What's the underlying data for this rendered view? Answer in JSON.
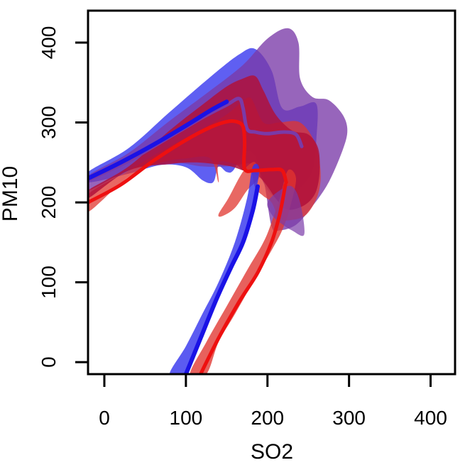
{
  "chart_data": {
    "type": "area",
    "title": "",
    "xlabel": "SO2",
    "ylabel": "PM10",
    "xlim": [
      -20,
      430
    ],
    "ylim": [
      -15,
      440
    ],
    "x_ticks": [
      0,
      100,
      200,
      300,
      400
    ],
    "y_ticks": [
      0,
      100,
      200,
      300,
      400
    ],
    "grid": false,
    "legend": "none",
    "colors": {
      "blue_band": "#3232ee",
      "purple_band": "#7a3aa8",
      "red_band": "#e0352f",
      "crimson_band": "#b0103a",
      "blue_line": "#1a12e6",
      "red_line": "#ee1010",
      "axis": "#000000"
    },
    "series": [
      {
        "role": "upper confidence band (blue)",
        "color_key": "blue_band",
        "opacity": 0.78,
        "points": [
          [
            -20,
            238
          ],
          [
            30,
            268
          ],
          [
            80,
            313
          ],
          [
            130,
            357
          ],
          [
            165,
            385
          ],
          [
            185,
            392
          ],
          [
            205,
            365
          ],
          [
            218,
            318
          ],
          [
            240,
            320
          ],
          [
            260,
            323
          ],
          [
            260,
            280
          ],
          [
            255,
            240
          ],
          [
            240,
            218
          ],
          [
            225,
            205
          ],
          [
            210,
            205
          ],
          [
            195,
            225
          ],
          [
            185,
            258
          ],
          [
            172,
            263
          ],
          [
            158,
            240
          ],
          [
            150,
            238
          ],
          [
            140,
            245
          ],
          [
            135,
            228
          ],
          [
            130,
            224
          ],
          [
            120,
            228
          ],
          [
            100,
            244
          ],
          [
            70,
            247
          ],
          [
            30,
            236
          ],
          [
            -20,
            225
          ]
        ]
      },
      {
        "role": "upper confidence band (purple)",
        "color_key": "purple_band",
        "opacity": 0.78,
        "points": [
          [
            -20,
            233
          ],
          [
            30,
            262
          ],
          [
            80,
            302
          ],
          [
            130,
            340
          ],
          [
            170,
            372
          ],
          [
            200,
            405
          ],
          [
            225,
            418
          ],
          [
            238,
            400
          ],
          [
            240,
            355
          ],
          [
            255,
            332
          ],
          [
            275,
            328
          ],
          [
            292,
            310
          ],
          [
            298,
            290
          ],
          [
            292,
            265
          ],
          [
            275,
            225
          ],
          [
            255,
            195
          ],
          [
            235,
            172
          ],
          [
            215,
            165
          ],
          [
            205,
            170
          ],
          [
            195,
            228
          ],
          [
            182,
            247
          ],
          [
            170,
            248
          ],
          [
            150,
            245
          ],
          [
            120,
            245
          ],
          [
            80,
            250
          ],
          [
            30,
            240
          ],
          [
            -20,
            215
          ]
        ]
      },
      {
        "role": "upper confidence band (red)",
        "color_key": "red_band",
        "opacity": 0.75,
        "points": [
          [
            -20,
            210
          ],
          [
            30,
            240
          ],
          [
            80,
            270
          ],
          [
            120,
            292
          ],
          [
            150,
            310
          ],
          [
            168,
            325
          ],
          [
            180,
            330
          ],
          [
            195,
            300
          ],
          [
            215,
            300
          ],
          [
            240,
            300
          ],
          [
            258,
            275
          ],
          [
            265,
            240
          ],
          [
            262,
            210
          ],
          [
            248,
            185
          ],
          [
            230,
            178
          ],
          [
            215,
            180
          ],
          [
            205,
            200
          ],
          [
            195,
            208
          ],
          [
            185,
            218
          ],
          [
            180,
            238
          ],
          [
            170,
            240
          ],
          [
            160,
            248
          ],
          [
            140,
            250
          ],
          [
            140,
            225
          ],
          [
            130,
            255
          ],
          [
            100,
            255
          ],
          [
            70,
            250
          ],
          [
            30,
            232
          ],
          [
            -20,
            188
          ]
        ]
      },
      {
        "role": "upper confidence band (crimson core)",
        "color_key": "crimson_band",
        "opacity": 0.85,
        "points": [
          [
            -20,
            215
          ],
          [
            30,
            245
          ],
          [
            80,
            290
          ],
          [
            120,
            322
          ],
          [
            150,
            345
          ],
          [
            170,
            355
          ],
          [
            185,
            358
          ],
          [
            195,
            340
          ],
          [
            210,
            310
          ],
          [
            230,
            290
          ],
          [
            250,
            285
          ],
          [
            262,
            268
          ],
          [
            264,
            240
          ],
          [
            260,
            215
          ],
          [
            250,
            200
          ],
          [
            235,
            192
          ],
          [
            222,
            192
          ],
          [
            210,
            205
          ],
          [
            200,
            220
          ],
          [
            190,
            232
          ],
          [
            180,
            238
          ],
          [
            170,
            240
          ],
          [
            155,
            245
          ],
          [
            135,
            248
          ],
          [
            110,
            250
          ],
          [
            80,
            248
          ],
          [
            30,
            240
          ],
          [
            -20,
            205
          ]
        ]
      },
      {
        "role": "lower confidence band (red)",
        "color_key": "red_band",
        "opacity": 0.75,
        "points": [
          [
            140,
            185
          ],
          [
            152,
            205
          ],
          [
            165,
            230
          ],
          [
            175,
            245
          ],
          [
            185,
            250
          ],
          [
            190,
            232
          ],
          [
            175,
            215
          ],
          [
            160,
            193
          ],
          [
            145,
            183
          ]
        ]
      },
      {
        "role": "lower confidence band (blue)",
        "color_key": "blue_band",
        "opacity": 0.8,
        "points": [
          [
            80,
            -15
          ],
          [
            100,
            20
          ],
          [
            120,
            60
          ],
          [
            140,
            100
          ],
          [
            160,
            150
          ],
          [
            175,
            205
          ],
          [
            182,
            245
          ],
          [
            190,
            240
          ],
          [
            180,
            190
          ],
          [
            165,
            140
          ],
          [
            148,
            100
          ],
          [
            130,
            55
          ],
          [
            112,
            10
          ],
          [
            100,
            -15
          ]
        ]
      },
      {
        "role": "lower confidence band (red)",
        "color_key": "red_band",
        "opacity": 0.78,
        "points": [
          [
            105,
            -15
          ],
          [
            125,
            25
          ],
          [
            150,
            70
          ],
          [
            175,
            115
          ],
          [
            195,
            150
          ],
          [
            205,
            175
          ],
          [
            215,
            205
          ],
          [
            225,
            240
          ],
          [
            235,
            230
          ],
          [
            228,
            195
          ],
          [
            218,
            165
          ],
          [
            205,
            140
          ],
          [
            185,
            105
          ],
          [
            160,
            60
          ],
          [
            140,
            25
          ],
          [
            125,
            -15
          ]
        ]
      },
      {
        "role": "lower confidence band (purple)",
        "color_key": "purple_band",
        "opacity": 0.7,
        "points": [
          [
            200,
            200
          ],
          [
            215,
            215
          ],
          [
            230,
            220
          ],
          [
            240,
            200
          ],
          [
            245,
            160
          ],
          [
            230,
            165
          ],
          [
            215,
            175
          ],
          [
            205,
            185
          ]
        ]
      },
      {
        "role": "upper fitted curve (purple)",
        "color_key": "purple_band",
        "type": "line",
        "width": 5,
        "points": [
          [
            -20,
            228
          ],
          [
            30,
            252
          ],
          [
            80,
            282
          ],
          [
            120,
            306
          ],
          [
            150,
            322
          ],
          [
            165,
            330
          ],
          [
            170,
            318
          ],
          [
            175,
            292
          ],
          [
            185,
            288
          ],
          [
            200,
            286
          ],
          [
            220,
            288
          ],
          [
            235,
            285
          ],
          [
            242,
            270
          ]
        ]
      },
      {
        "role": "upper fitted curve (blue)",
        "color_key": "blue_line",
        "type": "line",
        "width": 6,
        "points": [
          [
            -20,
            230
          ],
          [
            20,
            250
          ],
          [
            60,
            272
          ],
          [
            100,
            296
          ],
          [
            130,
            315
          ],
          [
            150,
            326
          ]
        ]
      },
      {
        "role": "upper fitted curve (red)",
        "color_key": "red_line",
        "type": "line",
        "width": 5,
        "points": [
          [
            -20,
            200
          ],
          [
            20,
            222
          ],
          [
            60,
            252
          ],
          [
            100,
            278
          ],
          [
            130,
            294
          ],
          [
            150,
            301
          ],
          [
            162,
            301
          ],
          [
            170,
            295
          ],
          [
            172,
            275
          ],
          [
            172,
            242
          ],
          [
            185,
            240
          ],
          [
            205,
            241
          ],
          [
            218,
            240
          ],
          [
            223,
            225
          ]
        ]
      },
      {
        "role": "lower fitted curve (blue)",
        "color_key": "blue_line",
        "type": "line",
        "width": 6,
        "points": [
          [
            100,
            -15
          ],
          [
            118,
            30
          ],
          [
            138,
            80
          ],
          [
            155,
            118
          ],
          [
            170,
            150
          ],
          [
            182,
            190
          ],
          [
            188,
            220
          ]
        ]
      },
      {
        "role": "lower fitted curve (red)",
        "color_key": "red_line",
        "type": "line",
        "width": 5,
        "points": [
          [
            118,
            -15
          ],
          [
            140,
            30
          ],
          [
            165,
            75
          ],
          [
            188,
            112
          ],
          [
            205,
            150
          ],
          [
            215,
            185
          ],
          [
            222,
            222
          ]
        ]
      }
    ]
  }
}
